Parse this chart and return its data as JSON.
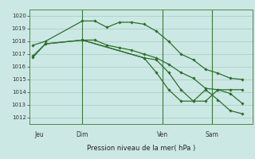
{
  "bg_color": "#cce8e4",
  "grid_color": "#aacfca",
  "line_color": "#2d6e2d",
  "title": "Pression niveau de la mer( hPa )",
  "ylim": [
    1011.5,
    1020.5
  ],
  "yticks": [
    1012,
    1013,
    1014,
    1015,
    1016,
    1017,
    1018,
    1019,
    1020
  ],
  "day_labels": [
    "Jeu",
    "Dim",
    "Ven",
    "Sam"
  ],
  "day_positions": [
    0.5,
    4.0,
    10.5,
    14.5
  ],
  "vline_positions": [
    4.0,
    10.5,
    14.5
  ],
  "series1": {
    "x": [
      0,
      1,
      4,
      5,
      6,
      7,
      8,
      9,
      10,
      11,
      12,
      13,
      14,
      15,
      16,
      17
    ],
    "y": [
      1017.7,
      1018.0,
      1019.6,
      1019.6,
      1019.1,
      1019.5,
      1019.5,
      1019.35,
      1018.8,
      1018.0,
      1017.0,
      1016.55,
      1015.8,
      1015.5,
      1015.1,
      1015.0
    ]
  },
  "series2": {
    "x": [
      0,
      1,
      4,
      5,
      6,
      7,
      8,
      9,
      10,
      11,
      12,
      13,
      14,
      15,
      16,
      17
    ],
    "y": [
      1016.85,
      1017.8,
      1018.1,
      1018.1,
      1017.7,
      1017.5,
      1017.3,
      1017.0,
      1016.7,
      1016.2,
      1015.55,
      1015.1,
      1014.3,
      1014.2,
      1013.9,
      1013.1
    ]
  },
  "series3": {
    "x": [
      0,
      1,
      4,
      9,
      10,
      11,
      12,
      13,
      14,
      15,
      16,
      17
    ],
    "y": [
      1016.75,
      1017.8,
      1018.1,
      1016.7,
      1016.55,
      1015.55,
      1014.2,
      1013.3,
      1013.3,
      1014.2,
      1014.2,
      1014.2
    ]
  },
  "series4": {
    "x": [
      4,
      9,
      10,
      11,
      12,
      13,
      14,
      15,
      16,
      17
    ],
    "y": [
      1018.1,
      1016.7,
      1015.55,
      1014.2,
      1013.3,
      1013.3,
      1014.2,
      1013.4,
      1012.55,
      1012.3
    ]
  }
}
